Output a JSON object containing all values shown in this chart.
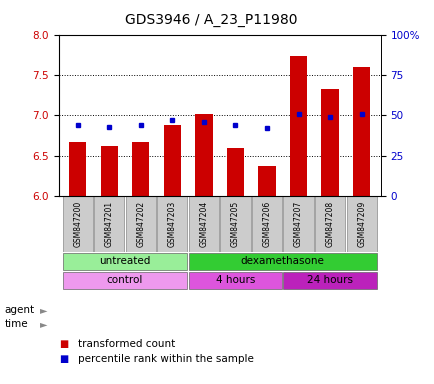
{
  "title": "GDS3946 / A_23_P11980",
  "samples": [
    "GSM847200",
    "GSM847201",
    "GSM847202",
    "GSM847203",
    "GSM847204",
    "GSM847205",
    "GSM847206",
    "GSM847207",
    "GSM847208",
    "GSM847209"
  ],
  "transformed_count": [
    6.67,
    6.62,
    6.67,
    6.88,
    7.01,
    6.6,
    6.37,
    7.74,
    7.32,
    7.6
  ],
  "percentile_rank": [
    44,
    43,
    44,
    47,
    46,
    44,
    42,
    51,
    49,
    51
  ],
  "bar_bottom": 6.0,
  "ylim_left": [
    6.0,
    8.0
  ],
  "ylim_right": [
    0,
    100
  ],
  "yticks_left": [
    6.0,
    6.5,
    7.0,
    7.5,
    8.0
  ],
  "yticks_right": [
    0,
    25,
    50,
    75,
    100
  ],
  "yticklabels_right": [
    "0",
    "25",
    "50",
    "75",
    "100%"
  ],
  "bar_color": "#cc0000",
  "dot_color": "#0000cc",
  "agent_untreated_color": "#99ee99",
  "agent_dexamethasone_color": "#33cc33",
  "time_control_color": "#ee99ee",
  "time_4hours_color": "#dd55dd",
  "time_24hours_color": "#bb22bb",
  "sample_box_color": "#cccccc",
  "background_color": "#ffffff",
  "title_fontsize": 10,
  "tick_fontsize": 7.5,
  "bar_width": 0.55
}
